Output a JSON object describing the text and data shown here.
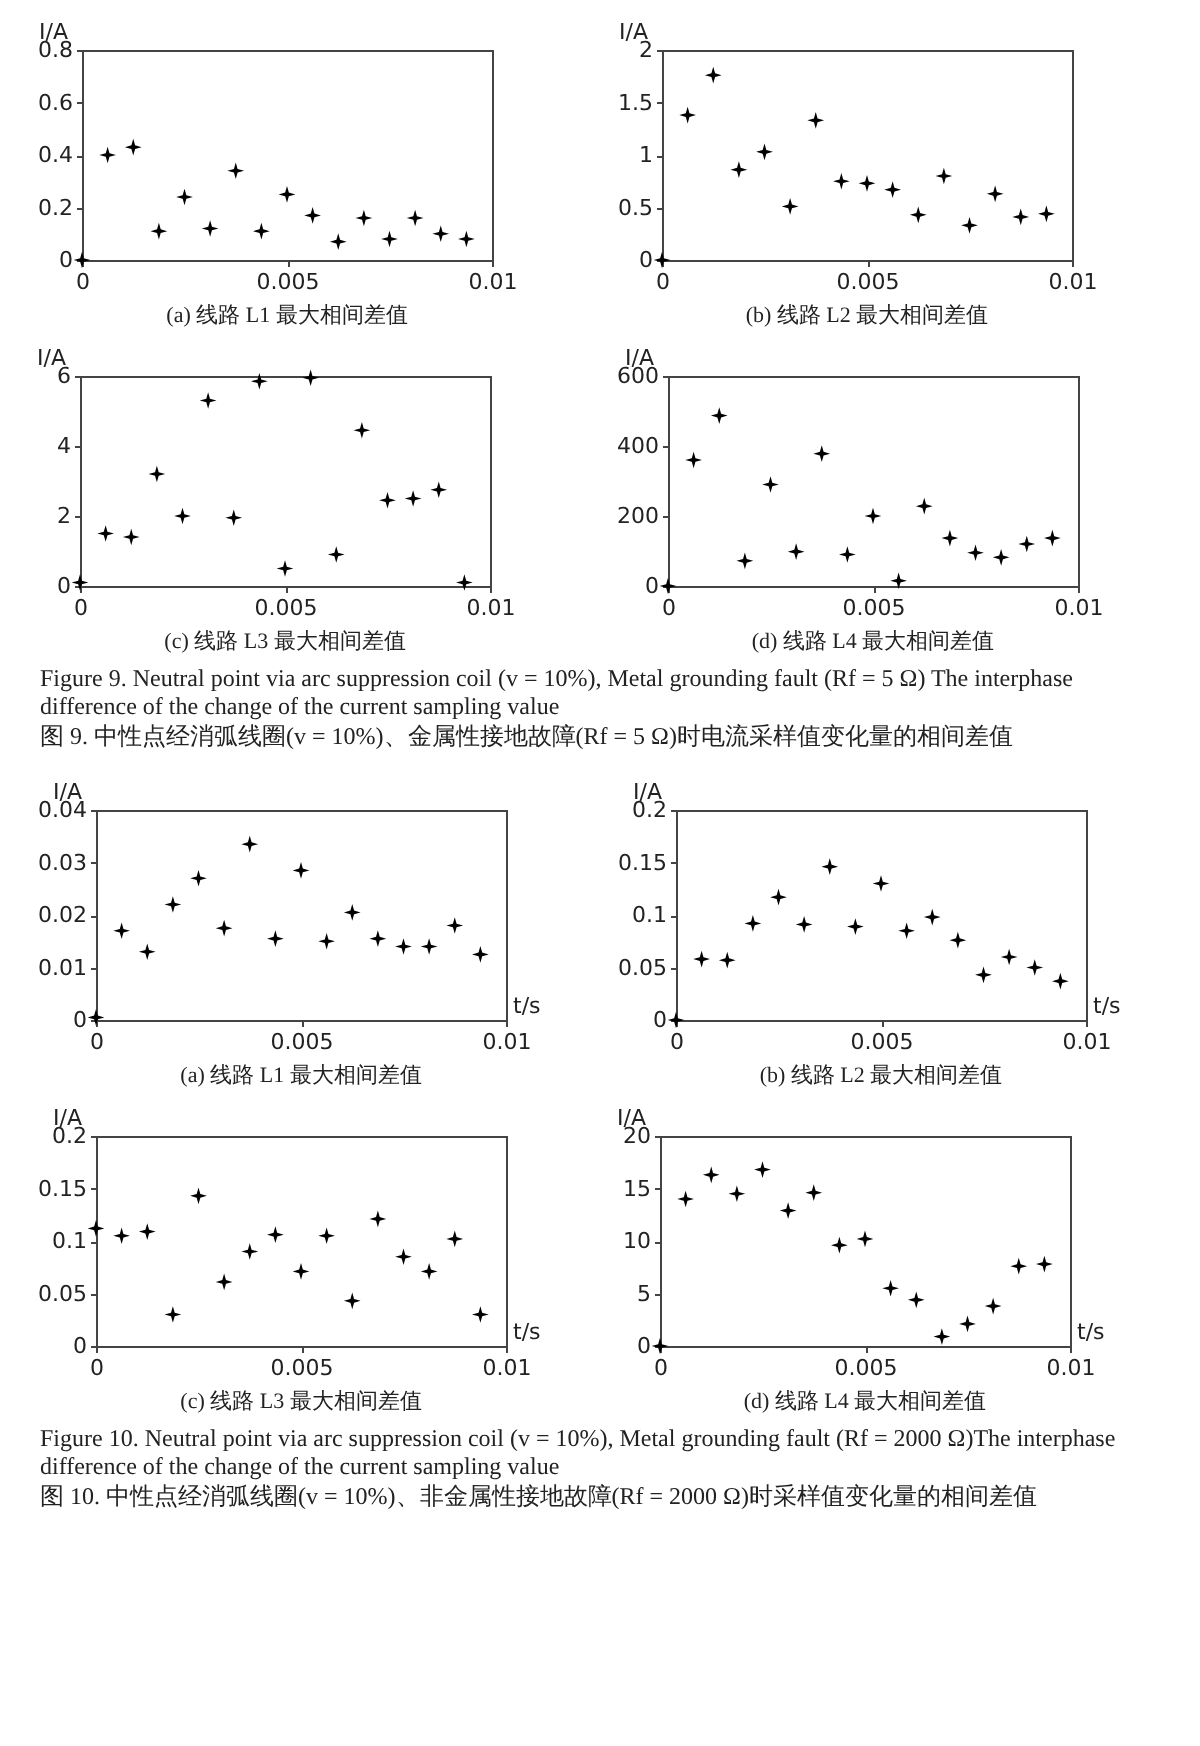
{
  "chart_data": [
    {
      "type": "scatter",
      "title": "(a)  线路 L1 最大相间差值",
      "ylabel": "I/A",
      "marker": "star",
      "x": [
        0,
        0.000625,
        0.00125,
        0.001875,
        0.0025,
        0.003125,
        0.00375,
        0.004375,
        0.005,
        0.005625,
        0.00625,
        0.006875,
        0.0075,
        0.008125,
        0.00875,
        0.009375
      ],
      "series": [
        {
          "color": "#000000",
          "values": [
            0,
            0.4,
            0.43,
            0.11,
            0.24,
            0.12,
            0.34,
            0.11,
            0.25,
            0.17,
            0.07,
            0.16,
            0.08,
            0.16,
            0.1,
            0.08
          ]
        }
      ],
      "xlim": [
        0,
        0.01
      ],
      "xticks": [
        0,
        0.005,
        0.01
      ],
      "ylim": [
        0,
        0.8
      ],
      "yticks": [
        0,
        0.2,
        0.4,
        0.6,
        0.8
      ]
    },
    {
      "type": "scatter",
      "title": "(b)  线路 L2 最大相间差值",
      "ylabel": "I/A",
      "marker": "star",
      "x": [
        0,
        0.000625,
        0.00125,
        0.001875,
        0.0025,
        0.003125,
        0.00375,
        0.004375,
        0.005,
        0.005625,
        0.00625,
        0.006875,
        0.0075,
        0.008125,
        0.00875,
        0.009375
      ],
      "series": [
        {
          "color": "#000000",
          "values": [
            0,
            1.38,
            1.76,
            0.86,
            1.03,
            0.51,
            1.33,
            0.75,
            0.73,
            0.67,
            0.43,
            0.8,
            0.33,
            0.63,
            0.41,
            0.44
          ]
        }
      ],
      "xlim": [
        0,
        0.01
      ],
      "xticks": [
        0,
        0.005,
        0.01
      ],
      "ylim": [
        0,
        2
      ],
      "yticks": [
        0,
        0.5,
        1,
        1.5,
        2
      ]
    },
    {
      "type": "scatter",
      "title": "(c)  线路 L3 最大相间差值",
      "ylabel": "I/A",
      "marker": "star",
      "x": [
        0,
        0.000625,
        0.00125,
        0.001875,
        0.0025,
        0.003125,
        0.00375,
        0.004375,
        0.005,
        0.005625,
        0.00625,
        0.006875,
        0.0075,
        0.008125,
        0.00875,
        0.009375
      ],
      "series": [
        {
          "color": "#000000",
          "values": [
            0.1,
            1.5,
            1.4,
            3.2,
            2.0,
            5.3,
            1.95,
            5.85,
            0.5,
            5.95,
            0.9,
            4.45,
            2.45,
            2.5,
            2.75,
            0.1
          ]
        }
      ],
      "xlim": [
        0,
        0.01
      ],
      "xticks": [
        0,
        0.005,
        0.01
      ],
      "ylim": [
        0,
        6
      ],
      "yticks": [
        0,
        2,
        4,
        6
      ]
    },
    {
      "type": "scatter",
      "title": "(d)  线路 L4 最大相间差值",
      "ylabel": "I/A",
      "marker": "star",
      "x": [
        0,
        0.000625,
        0.00125,
        0.001875,
        0.0025,
        0.003125,
        0.00375,
        0.004375,
        0.005,
        0.005625,
        0.00625,
        0.006875,
        0.0075,
        0.008125,
        0.00875,
        0.009375
      ],
      "series": [
        {
          "color": "#000000",
          "values": [
            0,
            360,
            487,
            72,
            290,
            98,
            378,
            90,
            200,
            15,
            228,
            137,
            95,
            82,
            120,
            137
          ]
        }
      ],
      "xlim": [
        0,
        0.01
      ],
      "xticks": [
        0,
        0.005,
        0.01
      ],
      "ylim": [
        0,
        600
      ],
      "yticks": [
        0,
        200,
        400,
        600
      ],
      "annotations": [
        "Figure 9. Neutral point via arc suppression coil (v = 10%), Metal grounding fault (Rf = 5 Ω) The interphase difference of the change of the current sampling value",
        "图 9. 中性点经消弧线圈(v = 10%)、金属性接地故障(Rf = 5 Ω)时电流采样值变化量的相间差值"
      ]
    },
    {
      "type": "scatter",
      "title": "(a)  线路 L1 最大相间差值",
      "ylabel": "I/A",
      "xlabel": "t/s",
      "marker": "star",
      "x": [
        0,
        0.000625,
        0.00125,
        0.001875,
        0.0025,
        0.003125,
        0.00375,
        0.004375,
        0.005,
        0.005625,
        0.00625,
        0.006875,
        0.0075,
        0.008125,
        0.00875,
        0.009375
      ],
      "series": [
        {
          "color": "#000000",
          "values": [
            0.0005,
            0.017,
            0.013,
            0.022,
            0.027,
            0.0175,
            0.0335,
            0.0155,
            0.0285,
            0.015,
            0.0205,
            0.0155,
            0.014,
            0.014,
            0.018,
            0.0125
          ]
        }
      ],
      "xlim": [
        0,
        0.01
      ],
      "xticks": [
        0,
        0.005,
        0.01
      ],
      "ylim": [
        0,
        0.04
      ],
      "yticks": [
        0,
        0.01,
        0.02,
        0.03,
        0.04
      ]
    },
    {
      "type": "scatter",
      "title": "(b)  线路 L2 最大相间差值",
      "ylabel": "I/A",
      "xlabel": "t/s",
      "marker": "star",
      "x": [
        0,
        0.000625,
        0.00125,
        0.001875,
        0.0025,
        0.003125,
        0.00375,
        0.004375,
        0.005,
        0.005625,
        0.00625,
        0.006875,
        0.0075,
        0.008125,
        0.00875,
        0.009375
      ],
      "series": [
        {
          "color": "#000000",
          "values": [
            0,
            0.058,
            0.057,
            0.092,
            0.117,
            0.091,
            0.146,
            0.089,
            0.13,
            0.085,
            0.098,
            0.076,
            0.043,
            0.06,
            0.05,
            0.037
          ]
        }
      ],
      "xlim": [
        0,
        0.01
      ],
      "xticks": [
        0,
        0.005,
        0.01
      ],
      "ylim": [
        0,
        0.2
      ],
      "yticks": [
        0,
        0.05,
        0.1,
        0.15,
        0.2
      ]
    },
    {
      "type": "scatter",
      "title": "(c)  线路 L3 最大相间差值",
      "ylabel": "I/A",
      "xlabel": "t/s",
      "marker": "star",
      "x": [
        0,
        0.000625,
        0.00125,
        0.001875,
        0.0025,
        0.003125,
        0.00375,
        0.004375,
        0.005,
        0.005625,
        0.00625,
        0.006875,
        0.0075,
        0.008125,
        0.00875,
        0.009375
      ],
      "series": [
        {
          "color": "#000000",
          "values": [
            0.112,
            0.105,
            0.109,
            0.03,
            0.143,
            0.061,
            0.09,
            0.106,
            0.071,
            0.105,
            0.043,
            0.121,
            0.085,
            0.071,
            0.102,
            0.03
          ]
        }
      ],
      "xlim": [
        0,
        0.01
      ],
      "xticks": [
        0,
        0.005,
        0.01
      ],
      "ylim": [
        0,
        0.2
      ],
      "yticks": [
        0,
        0.05,
        0.1,
        0.15,
        0.2
      ]
    },
    {
      "type": "scatter",
      "title": "(d)  线路 L4 最大相间差值",
      "ylabel": "I/A",
      "xlabel": "t/s",
      "marker": "star",
      "x": [
        0,
        0.000625,
        0.00125,
        0.001875,
        0.0025,
        0.003125,
        0.00375,
        0.004375,
        0.005,
        0.005625,
        0.00625,
        0.006875,
        0.0075,
        0.008125,
        0.00875,
        0.009375
      ],
      "series": [
        {
          "color": "#000000",
          "values": [
            0,
            14,
            16.3,
            14.5,
            16.8,
            12.9,
            14.6,
            9.6,
            10.2,
            5.5,
            4.4,
            0.9,
            2.1,
            3.8,
            7.6,
            7.8
          ]
        }
      ],
      "xlim": [
        0,
        0.01
      ],
      "xticks": [
        0,
        0.005,
        0.01
      ],
      "ylim": [
        0,
        20
      ],
      "yticks": [
        0,
        5,
        10,
        15,
        20
      ],
      "annotations": [
        "Figure 10. Neutral point via arc suppression coil (v = 10%), Metal grounding fault (Rf = 2000 Ω)The interphase difference of the change of the current sampling value",
        "图 10. 中性点经消弧线圈(v = 10%)、非金属性接地故障(Rf = 2000 Ω)时采样值变化量的相间差值"
      ]
    }
  ]
}
